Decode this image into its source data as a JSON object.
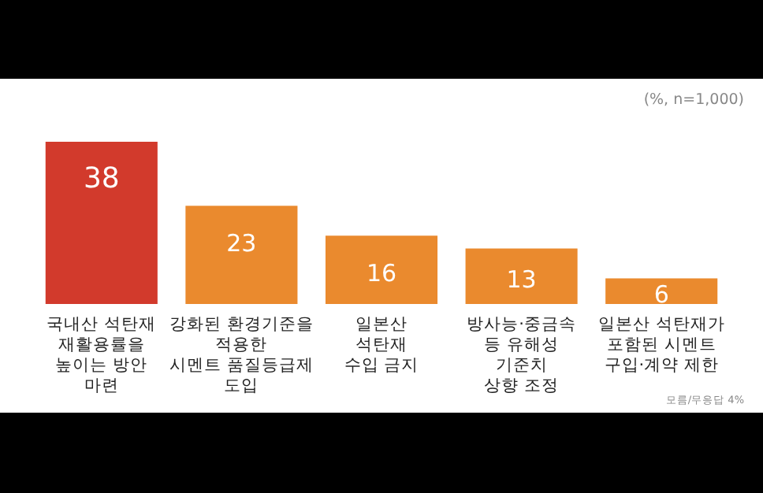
{
  "chart_data": {
    "type": "bar",
    "categories": [
      "국내산 석탄재\n재활용률을\n높이는 방안\n마련",
      "강화된 환경기준을\n적용한\n시멘트 품질등급제\n도입",
      "일본산\n석탄재\n수입 금지",
      "방사능·중금속\n등 유해성\n기준치\n상향 조정",
      "일본산 석탄재가\n포함된 시멘트\n구입·계약 제한"
    ],
    "values": [
      38,
      23,
      16,
      13,
      6
    ],
    "colors": [
      "#d23a2c",
      "#ea8a2e",
      "#ea8a2e",
      "#ea8a2e",
      "#ea8a2e"
    ],
    "data_labels": true,
    "annotations": [
      "(%, n=1,000)",
      "모름/무응답 4%"
    ]
  }
}
